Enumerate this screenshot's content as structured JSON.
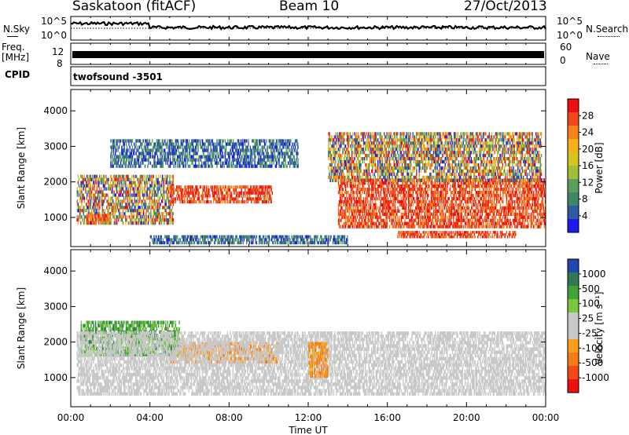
{
  "header": {
    "station": "Saskatoon (fitACF)",
    "beam": "Beam 10",
    "date": "27/Oct/2013"
  },
  "top_panels": {
    "nsky_label": "N.Sky",
    "nsky_ticks": [
      "10^5",
      "10^0"
    ],
    "nsearch_label": "N.Search",
    "nsearch_ticks": [
      "10^5",
      "10^0"
    ],
    "freq_label": "Freq.",
    "freq_unit": "[MHz]",
    "freq_ticks": [
      "12",
      "8"
    ],
    "nave_label": "Nave",
    "nave_ticks": [
      "60",
      "0"
    ],
    "cpid_label": "CPID",
    "cpid_value": "twofsound -3501"
  },
  "chart_data": [
    {
      "type": "heatmap",
      "name": "power",
      "ylabel": "Slant Range [km]",
      "yticks": [
        "4000",
        "3000",
        "2000",
        "1000"
      ],
      "ylim": [
        180,
        4600
      ],
      "xlim": [
        "00:00",
        "24:00"
      ],
      "colorbar": {
        "label": "Power [dB]",
        "ticks": [
          "28",
          "24",
          "20",
          "16",
          "12",
          "8",
          "4"
        ],
        "colors": [
          "#ee1010",
          "#f04a1a",
          "#f5821e",
          "#f7b01c",
          "#d8c41e",
          "#9fbf3a",
          "#5aa05c",
          "#3e8868",
          "#2f5ba2",
          "#1a1aee"
        ]
      },
      "regions": [
        {
          "t0": 0.3,
          "t1": 5.2,
          "r0": 800,
          "r1": 2200,
          "level": "mixed"
        },
        {
          "t0": 0.8,
          "t1": 2.0,
          "r0": 800,
          "r1": 1100,
          "level": "high"
        },
        {
          "t0": 5.0,
          "t1": 10.2,
          "r0": 1400,
          "r1": 1900,
          "level": "high"
        },
        {
          "t0": 2.0,
          "t1": 11.5,
          "r0": 2400,
          "r1": 3200,
          "level": "low"
        },
        {
          "t0": 13.5,
          "t1": 24.0,
          "r0": 700,
          "r1": 2100,
          "level": "high"
        },
        {
          "t0": 13.0,
          "t1": 23.8,
          "r0": 2000,
          "r1": 3400,
          "level": "mixed"
        },
        {
          "t0": 4.0,
          "t1": 14.0,
          "r0": 250,
          "r1": 500,
          "level": "low"
        },
        {
          "t0": 16.5,
          "t1": 22.5,
          "r0": 420,
          "r1": 620,
          "level": "high"
        }
      ]
    },
    {
      "type": "heatmap",
      "name": "velocity",
      "ylabel": "Slant Range [km]",
      "yticks": [
        "4000",
        "3000",
        "2000",
        "1000"
      ],
      "ylim": [
        180,
        4600
      ],
      "xlim": [
        "00:00",
        "24:00"
      ],
      "xticks": [
        "00:00",
        "04:00",
        "08:00",
        "12:00",
        "16:00",
        "20:00",
        "00:00"
      ],
      "xlabel": "Time UT",
      "colorbar": {
        "label": "Velocity [m s⁻¹]",
        "ticks": [
          "1000",
          "500",
          "100",
          "25",
          "-25",
          "-100",
          "-500",
          "-1000"
        ],
        "colors": [
          "#2346b0",
          "#2f7a52",
          "#3ea43a",
          "#7cc63a",
          "#c8c8c8",
          "#c8c8c8",
          "#f7a018",
          "#f57a18",
          "#f24a16",
          "#ee1010"
        ]
      },
      "regions": [
        {
          "t0": 5.0,
          "t1": 10.5,
          "r0": 1400,
          "r1": 2000,
          "level": "negative"
        },
        {
          "t0": 0.5,
          "t1": 5.5,
          "r0": 1600,
          "r1": 2600,
          "level": "positive"
        },
        {
          "t0": 0.3,
          "t1": 24.0,
          "r0": 500,
          "r1": 2300,
          "level": "ground"
        },
        {
          "t0": 12.0,
          "t1": 13.0,
          "r0": 1000,
          "r1": 2000,
          "level": "negative"
        }
      ]
    }
  ]
}
